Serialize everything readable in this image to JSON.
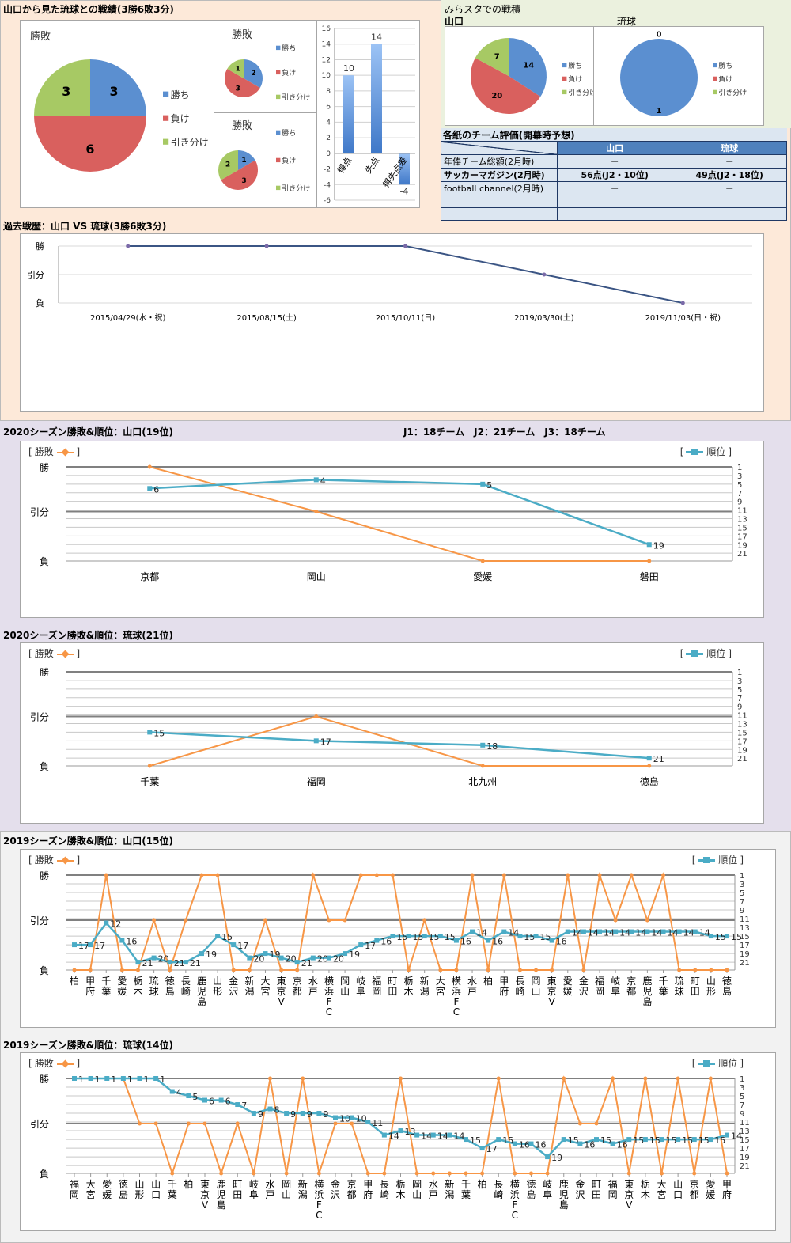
{
  "section1": {
    "title": "山口から見た琉球との戦績(3勝6敗3分)"
  },
  "mirasta": {
    "title": "みらスタでの戦積"
  },
  "table": {
    "title": "各紙のチーム評価(開幕時予想)",
    "columns": [
      "",
      "山口",
      "琉球"
    ],
    "rows": [
      [
        "年俸チーム総額(2月時)",
        "－",
        "－"
      ],
      [
        "サッカーマガジン(2月時)",
        "56点(J2・10位)",
        "49点(J2・18位)"
      ],
      [
        "football channel(2月時)",
        "－",
        "－"
      ],
      [
        "",
        "",
        ""
      ],
      [
        "",
        "",
        ""
      ]
    ]
  },
  "past": {
    "title": "過去戦歴：山口 VS 琉球(3勝6敗3分)"
  },
  "s2020y": {
    "title": "2020シーズン勝敗&順位：山口(19位)",
    "teams": "J1：18チーム　J2：21チーム　J3：18チーム"
  },
  "s2020r": {
    "title": "2020シーズン勝敗&順位：琉球(21位)"
  },
  "s2019y": {
    "title": "2019シーズン勝敗&順位：山口(15位)"
  },
  "s2019r": {
    "title": "2019シーズン勝敗&順位：琉球(14位)"
  },
  "colors": {
    "win": "#5b8fd0",
    "loss": "#d9605e",
    "draw": "#a7c964",
    "result_line": "#f79646",
    "rank_line": "#4bacc6",
    "past_line": "#3b5584"
  },
  "chart_data": [
    {
      "type": "pie",
      "title": "勝敗",
      "legend": [
        "勝ち",
        "負け",
        "引き分け"
      ],
      "values": [
        3,
        6,
        3
      ]
    },
    {
      "type": "pie",
      "title": "勝敗",
      "legend": [
        "勝ち",
        "負け",
        "引き分け"
      ],
      "values": [
        2,
        3,
        1
      ]
    },
    {
      "type": "pie",
      "title": "勝敗",
      "legend": [
        "勝ち",
        "負け",
        "引き分け"
      ],
      "values": [
        1,
        3,
        2
      ]
    },
    {
      "type": "bar",
      "categories": [
        "得点",
        "失点",
        "得失点差"
      ],
      "values": [
        10,
        14,
        -4
      ],
      "ylim": [
        -6,
        16
      ],
      "yticks": [
        "16",
        "14",
        "12",
        "10",
        "8",
        "6",
        "4",
        "2",
        "0",
        "-2",
        "-4",
        "-6"
      ]
    },
    {
      "type": "pie",
      "title": "山口",
      "legend": [
        "勝ち",
        "負け",
        "引き分け"
      ],
      "values": [
        14,
        20,
        7
      ]
    },
    {
      "type": "pie",
      "title": "琉球",
      "legend": [
        "勝ち",
        "負け",
        "引き分け"
      ],
      "values": [
        1,
        0,
        0
      ]
    },
    {
      "type": "line",
      "y_labels": [
        "勝",
        "引分",
        "負"
      ],
      "categories": [
        "2015/04/29(水・祝)",
        "2015/08/15(土)",
        "2015/10/11(日)",
        "2019/03/30(土)",
        "2019/11/03(日・祝)"
      ],
      "results": [
        "勝",
        "勝",
        "勝",
        "引分",
        "負"
      ]
    },
    {
      "type": "line",
      "legend_left": "勝敗",
      "legend_right": "順位",
      "y_labels": [
        "勝",
        "引分",
        "負"
      ],
      "rank_ticks": [
        "1",
        "3",
        "5",
        "7",
        "9",
        "11",
        "13",
        "15",
        "17",
        "19",
        "21"
      ],
      "categories": [
        "京都",
        "岡山",
        "愛媛",
        "磐田"
      ],
      "results": [
        "勝",
        "引分",
        "負",
        "負"
      ],
      "ranks": [
        6,
        4,
        5,
        19
      ]
    },
    {
      "type": "line",
      "legend_left": "勝敗",
      "legend_right": "順位",
      "y_labels": [
        "勝",
        "引分",
        "負"
      ],
      "rank_ticks": [
        "1",
        "3",
        "5",
        "7",
        "9",
        "11",
        "13",
        "15",
        "17",
        "19",
        "21"
      ],
      "categories": [
        "千葉",
        "福岡",
        "北九州",
        "徳島"
      ],
      "results": [
        "負",
        "引分",
        "負",
        "負"
      ],
      "ranks": [
        15,
        17,
        18,
        21
      ]
    },
    {
      "type": "line",
      "legend_left": "勝敗",
      "legend_right": "順位",
      "y_labels": [
        "勝",
        "引分",
        "負"
      ],
      "rank_ticks": [
        "1",
        "3",
        "5",
        "7",
        "9",
        "11",
        "13",
        "15",
        "17",
        "19",
        "21"
      ],
      "categories": [
        "柏",
        "甲府",
        "千葉",
        "愛媛",
        "栃木",
        "琉球",
        "徳島",
        "長崎",
        "鹿児島",
        "山形",
        "金沢",
        "新潟",
        "大宮",
        "東京V",
        "京都",
        "水戸",
        "横浜FC",
        "岡山",
        "岐阜",
        "福岡",
        "町田",
        "栃木",
        "新潟",
        "大宮",
        "横浜FC",
        "水戸",
        "柏",
        "甲府",
        "長崎",
        "岡山",
        "東京V",
        "愛媛",
        "金沢",
        "福岡",
        "岐阜",
        "京都",
        "鹿児島",
        "千葉",
        "琉球",
        "町田",
        "山形",
        "徳島"
      ],
      "results": [
        "負",
        "負",
        "勝",
        "負",
        "負",
        "引分",
        "負",
        "引分",
        "勝",
        "勝",
        "負",
        "負",
        "引分",
        "負",
        "負",
        "勝",
        "引分",
        "引分",
        "勝",
        "勝",
        "勝",
        "負",
        "引分",
        "負",
        "負",
        "勝",
        "負",
        "勝",
        "負",
        "負",
        "負",
        "勝",
        "負",
        "勝",
        "引分",
        "勝",
        "引分",
        "勝",
        "負",
        "負",
        "負",
        "負"
      ],
      "ranks": [
        17,
        17,
        12,
        16,
        21,
        20,
        21,
        21,
        19,
        15,
        17,
        20,
        19,
        20,
        21,
        20,
        20,
        19,
        17,
        16,
        15,
        15,
        15,
        15,
        16,
        14,
        16,
        14,
        15,
        15,
        16,
        14,
        14,
        14,
        14,
        14,
        14,
        14,
        14,
        14,
        15,
        15
      ]
    },
    {
      "type": "line",
      "legend_left": "勝敗",
      "legend_right": "順位",
      "y_labels": [
        "勝",
        "引分",
        "負"
      ],
      "rank_ticks": [
        "1",
        "3",
        "5",
        "7",
        "9",
        "11",
        "13",
        "15",
        "17",
        "19",
        "21"
      ],
      "categories": [
        "福岡",
        "大宮",
        "愛媛",
        "徳島",
        "山形",
        "山口",
        "千葉",
        "柏",
        "東京V",
        "鹿児島",
        "町田",
        "岐阜",
        "水戸",
        "岡山",
        "新潟",
        "横浜FC",
        "金沢",
        "京都",
        "甲府",
        "長崎",
        "栃木",
        "岡山",
        "水戸",
        "新潟",
        "千葉",
        "柏",
        "長崎",
        "横浜FC",
        "徳島",
        "岐阜",
        "鹿児島",
        "金沢",
        "町田",
        "福岡",
        "東京V",
        "栃木",
        "大宮",
        "山口",
        "京都",
        "愛媛",
        "甲府"
      ],
      "results": [
        "勝",
        "勝",
        "勝",
        "勝",
        "引分",
        "引分",
        "負",
        "引分",
        "引分",
        "負",
        "引分",
        "負",
        "勝",
        "負",
        "勝",
        "負",
        "引分",
        "引分",
        "負",
        "負",
        "勝",
        "負",
        "負",
        "負",
        "負",
        "負",
        "勝",
        "負",
        "負",
        "負",
        "勝",
        "引分",
        "引分",
        "勝",
        "負",
        "勝",
        "負",
        "勝",
        "負",
        "勝",
        "負"
      ],
      "ranks": [
        1,
        1,
        1,
        1,
        1,
        1,
        4,
        5,
        6,
        6,
        7,
        9,
        8,
        9,
        9,
        9,
        10,
        10,
        11,
        14,
        13,
        14,
        14,
        14,
        15,
        17,
        15,
        16,
        16,
        19,
        15,
        16,
        15,
        16,
        15,
        15,
        15,
        15,
        15,
        15,
        14
      ]
    }
  ]
}
